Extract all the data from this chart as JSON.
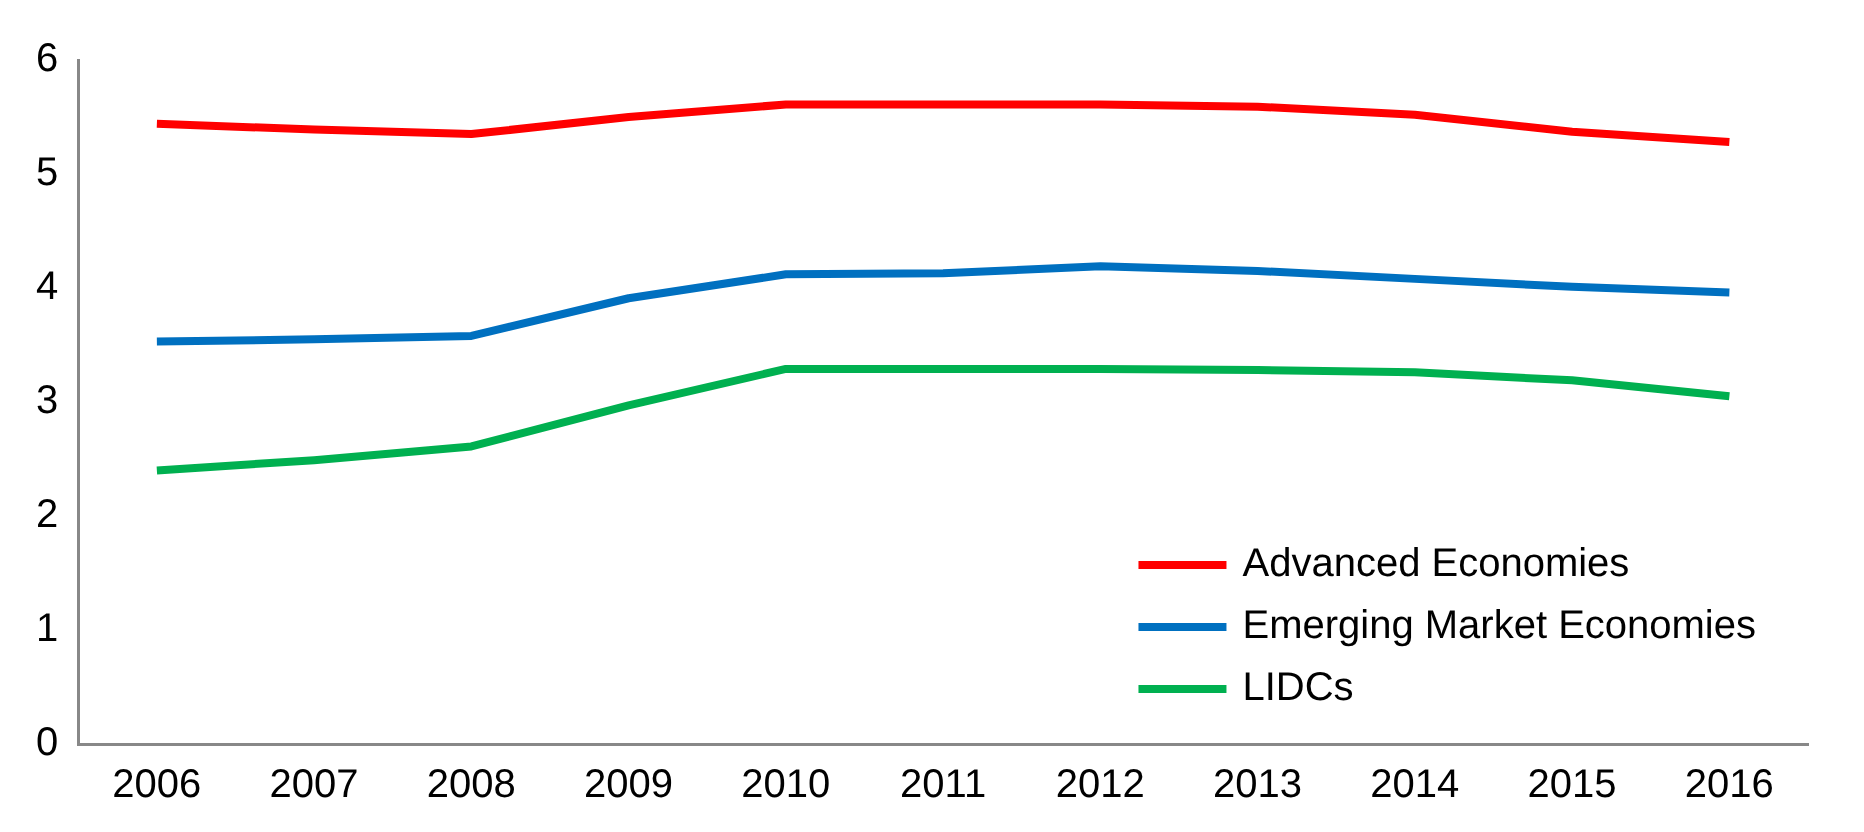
{
  "chart_data": {
    "type": "line",
    "categories": [
      "2006",
      "2007",
      "2008",
      "2009",
      "2010",
      "2011",
      "2012",
      "2013",
      "2014",
      "2015",
      "2016"
    ],
    "series": [
      {
        "name": "Advanced Economies",
        "color": "#ff0000",
        "values": [
          5.44,
          5.39,
          5.35,
          5.5,
          5.61,
          5.61,
          5.61,
          5.59,
          5.52,
          5.37,
          5.28
        ]
      },
      {
        "name": "Emerging Market Economies",
        "color": "#0070c0",
        "values": [
          3.53,
          3.55,
          3.58,
          3.91,
          4.12,
          4.13,
          4.19,
          4.15,
          4.08,
          4.01,
          3.96
        ]
      },
      {
        "name": "LIDCs",
        "color": "#00b050",
        "values": [
          2.4,
          2.49,
          2.61,
          2.97,
          3.29,
          3.29,
          3.29,
          3.28,
          3.26,
          3.19,
          3.05
        ]
      }
    ],
    "ylim": [
      0,
      6
    ],
    "yticks": [
      0,
      1,
      2,
      3,
      4,
      5,
      6
    ],
    "grid": false,
    "legend": "bottom right",
    "marker": "none",
    "line_style": "solid"
  }
}
